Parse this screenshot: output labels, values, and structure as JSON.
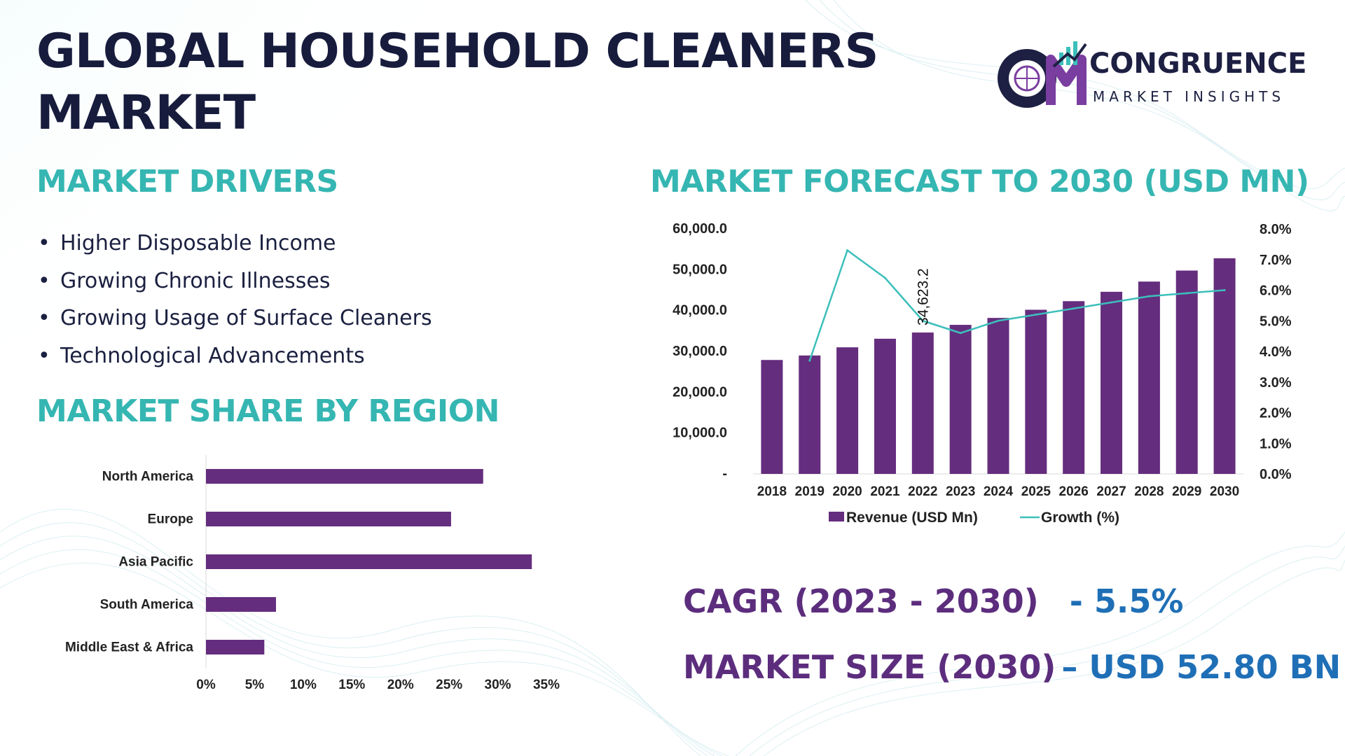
{
  "title": "GLOBAL HOUSEHOLD CLEANERS MARKET",
  "logo": {
    "name": "CONGRUENCE",
    "subtitle": "MARKET INSIGHTS"
  },
  "drivers": {
    "heading": "MARKET DRIVERS",
    "items": [
      "Higher Disposable Income",
      "Growing Chronic Illnesses",
      "Growing Usage of Surface Cleaners",
      "Technological Advancements"
    ]
  },
  "region": {
    "heading": "MARKET SHARE BY REGION"
  },
  "forecast": {
    "heading": "MARKET FORECAST TO 2030 (USD MN)"
  },
  "kpis": {
    "cagr_label": "CAGR (2023 - 2030)",
    "cagr_value": "- 5.5%",
    "size_label": "MARKET SIZE (2030)",
    "size_value": "– USD 52.80 BN"
  },
  "chart_data": [
    {
      "type": "bar",
      "orientation": "horizontal",
      "title": "MARKET SHARE BY REGION",
      "categories": [
        "North America",
        "Europe",
        "Asia Pacific",
        "South America",
        "Middle East & Africa"
      ],
      "values": [
        28.5,
        25.2,
        33.5,
        7.2,
        6.0
      ],
      "xlim": [
        0,
        35
      ],
      "ticks": [
        0,
        5,
        10,
        15,
        20,
        25,
        30,
        35
      ],
      "tick_labels": [
        "0%",
        "5%",
        "10%",
        "15%",
        "20%",
        "25%",
        "30%",
        "35%"
      ],
      "color": "#652d7e"
    },
    {
      "type": "bar+line",
      "title": "MARKET FORECAST TO 2030 (USD MN)",
      "categories": [
        "2018",
        "2019",
        "2020",
        "2021",
        "2022",
        "2023",
        "2024",
        "2025",
        "2026",
        "2027",
        "2028",
        "2029",
        "2030"
      ],
      "series": [
        {
          "name": "Revenue (USD Mn)",
          "type": "bar",
          "axis": "left",
          "color": "#652d7e",
          "values": [
            27900,
            29000,
            31000,
            33100,
            34623.2,
            36500,
            38200,
            40200,
            42300,
            44600,
            47100,
            49800,
            52800
          ]
        },
        {
          "name": "Growth (%)",
          "type": "line",
          "axis": "right",
          "color": "#3cbfbb",
          "values": [
            null,
            3.7,
            7.3,
            6.4,
            5.0,
            4.6,
            5.0,
            5.2,
            5.4,
            5.6,
            5.8,
            5.9,
            6.0
          ]
        }
      ],
      "data_labels": [
        {
          "index": 4,
          "text": "34,623.2"
        }
      ],
      "left_axis": {
        "ylim": [
          0,
          60000
        ],
        "ticks": [
          0,
          10000,
          20000,
          30000,
          40000,
          50000,
          60000
        ],
        "tick_labels": [
          "-",
          "10,000.0",
          "20,000.0",
          "30,000.0",
          "40,000.0",
          "50,000.0",
          "60,000.0"
        ]
      },
      "right_axis": {
        "ylim": [
          0,
          8
        ],
        "ticks": [
          0,
          1,
          2,
          3,
          4,
          5,
          6,
          7,
          8
        ],
        "tick_labels": [
          "0.0%",
          "1.0%",
          "2.0%",
          "3.0%",
          "4.0%",
          "5.0%",
          "6.0%",
          "7.0%",
          "8.0%"
        ]
      },
      "legend": "bottom"
    }
  ]
}
